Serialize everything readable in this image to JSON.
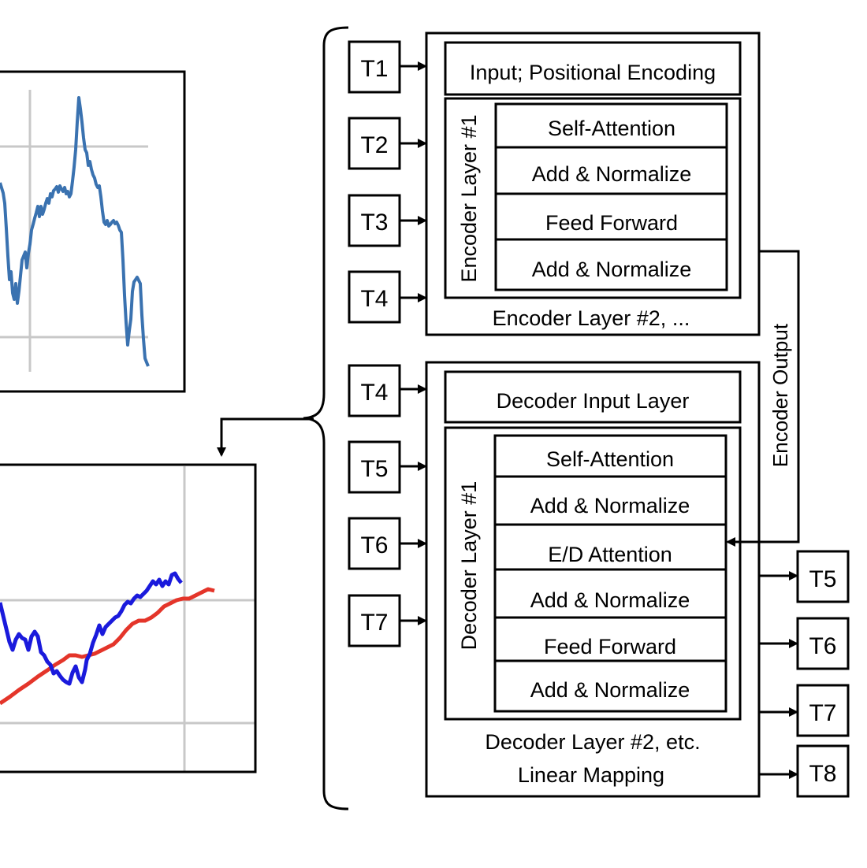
{
  "encoder": {
    "input_tokens": [
      "T1",
      "T2",
      "T3",
      "T4"
    ],
    "input_layer": "Input; Positional Encoding",
    "layer1_label": "Encoder Layer #1",
    "sublayers": [
      "Self-Attention",
      "Add & Normalize",
      "Feed Forward",
      "Add & Normalize"
    ],
    "layer2_label": "Encoder Layer #2, ..."
  },
  "encoder_output_label": "Encoder Output",
  "decoder": {
    "input_tokens": [
      "T4",
      "T5",
      "T6",
      "T7"
    ],
    "input_layer": "Decoder Input Layer",
    "layer1_label": "Decoder Layer #1",
    "sublayers": [
      "Self-Attention",
      "Add & Normalize",
      "E/D Attention",
      "Add & Normalize",
      "Feed Forward",
      "Add & Normalize"
    ],
    "layer2_label": "Decoder Layer #2, etc.",
    "linear_label": "Linear Mapping",
    "output_tokens": [
      "T5",
      "T6",
      "T7",
      "T8"
    ]
  },
  "colors": {
    "input_series": "#3a72b0",
    "predicted_series": "#1a1adc",
    "trend_series": "#e4352a",
    "grid": "#c8c8c8"
  }
}
